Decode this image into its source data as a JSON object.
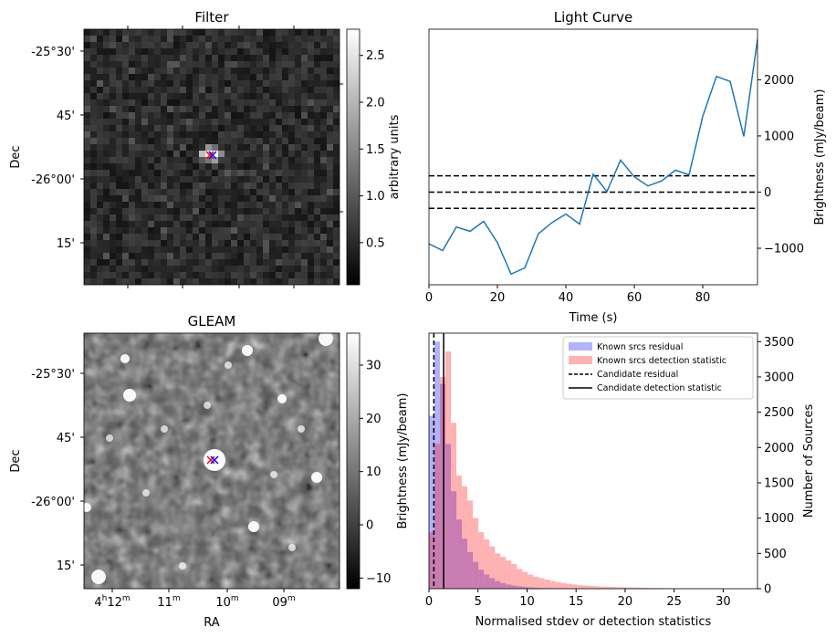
{
  "panels": {
    "filter": {
      "title": "Filter",
      "ylabel": "Dec",
      "dec_ticks": [
        "-25°30'",
        "45'",
        "-26°00'",
        "15'"
      ],
      "colorbar": {
        "label": "arbitrary units",
        "ticks": [
          "0.5",
          "1.0",
          "1.5",
          "2.0",
          "2.5"
        ],
        "range": [
          0.05,
          2.78
        ]
      }
    },
    "gleam": {
      "title": "GLEAM",
      "ylabel": "Dec",
      "xlabel": "RA",
      "dec_ticks": [
        "-25°30'",
        "45'",
        "-26°00'",
        "15'"
      ],
      "ra_ticks": [
        {
          "h": "4",
          "hs": "h",
          "m": "12",
          "ms": "m"
        },
        {
          "h": "",
          "hs": "",
          "m": "11",
          "ms": "m"
        },
        {
          "h": "",
          "hs": "",
          "m": "10",
          "ms": "m"
        },
        {
          "h": "",
          "hs": "",
          "m": "09",
          "ms": "m"
        }
      ],
      "colorbar": {
        "ticks": [
          "−10",
          "0",
          "10",
          "20",
          "30"
        ],
        "range": [
          -12,
          36
        ]
      }
    }
  },
  "colors": {
    "line": "#1f77b4",
    "residual_hist": "#0000ff",
    "detection_hist": "#ff0000",
    "marker_red": "#ff0000",
    "marker_blue": "#0000ff"
  },
  "chart_data": [
    {
      "type": "line",
      "title": "Light Curve",
      "xlabel": "Time (s)",
      "ylabel": "Brightness (mJy/beam)",
      "xlim": [
        0,
        96
      ],
      "ylim": [
        -1650,
        2900
      ],
      "x": [
        0,
        4,
        8,
        12,
        16,
        20,
        24,
        28,
        32,
        36,
        40,
        44,
        48,
        52,
        56,
        60,
        64,
        68,
        72,
        76,
        80,
        84,
        88,
        92,
        96
      ],
      "y": [
        -920,
        -1040,
        -620,
        -700,
        -520,
        -900,
        -1460,
        -1350,
        -740,
        -540,
        -390,
        -570,
        320,
        10,
        570,
        270,
        110,
        200,
        390,
        310,
        1350,
        2060,
        1970,
        990,
        2720
      ],
      "hlines": [
        290,
        0,
        -290
      ],
      "xticks": [
        0,
        20,
        40,
        60,
        80
      ],
      "yticks": [
        -1000,
        0,
        1000,
        2000
      ]
    },
    {
      "type": "bar",
      "xlabel": "Normalised stdev or detection statistics",
      "ylabel_left": "Brightness (mJy/beam)",
      "ylabel_right": "Number of Sources",
      "xlim": [
        0,
        33.5
      ],
      "ylim": [
        0,
        3620
      ],
      "xticks": [
        0,
        5,
        10,
        15,
        20,
        25,
        30
      ],
      "yticks": [
        0,
        500,
        1000,
        1500,
        2000,
        2500,
        3000,
        3500
      ],
      "bin_width": 0.56,
      "series": [
        {
          "name": "Known srcs residual",
          "bin_start": 0.0,
          "values": [
            2450,
            3500,
            2900,
            2050,
            1380,
            980,
            710,
            520,
            380,
            270,
            200,
            150,
            110,
            80,
            60,
            45,
            35,
            25,
            18,
            14,
            10,
            8,
            6,
            5,
            4,
            3,
            2,
            2,
            1,
            1
          ]
        },
        {
          "name": "Known srcs detection statistic",
          "bin_start": 0.0,
          "values": [
            800,
            2050,
            3000,
            3360,
            2350,
            1600,
            1450,
            1250,
            1000,
            800,
            700,
            600,
            500,
            450,
            400,
            350,
            280,
            240,
            200,
            170,
            150,
            130,
            110,
            95,
            80,
            70,
            60,
            50,
            45,
            40,
            35,
            30,
            28,
            25,
            22,
            20,
            18,
            16,
            14,
            12,
            11,
            10,
            9,
            8,
            7,
            7,
            6,
            6,
            5,
            5,
            4,
            4,
            4,
            3,
            3,
            3,
            2,
            2,
            2,
            2
          ]
        }
      ],
      "vlines": [
        {
          "name": "Candidate residual",
          "x": 0.5,
          "style": "dashed"
        },
        {
          "name": "Candidate detection statistic",
          "x": 1.5,
          "style": "solid"
        }
      ]
    }
  ]
}
